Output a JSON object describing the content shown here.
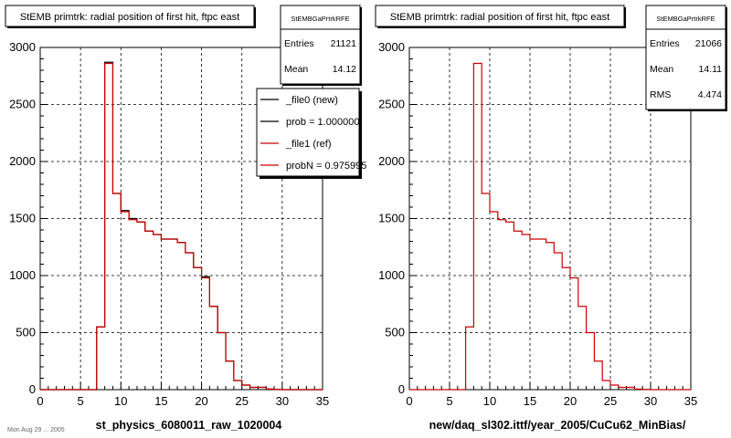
{
  "canvas": {
    "background": "#ffffff",
    "frame_color": "#000000",
    "grid_color": "#000000"
  },
  "footer_text": "Mon Aug 29 ... 2005",
  "chart_data": [
    {
      "type": "histogram",
      "title": "StEMB primtrk: radial position of first hit, ftpc east",
      "xlabel": "st_physics_6080011_raw_1020004",
      "ylabel": "",
      "xlim": [
        0,
        35
      ],
      "ylim": [
        0,
        3000
      ],
      "x_ticks": [
        0,
        5,
        10,
        15,
        20,
        25,
        30,
        35
      ],
      "y_ticks": [
        0,
        500,
        1000,
        1500,
        2000,
        2500,
        3000
      ],
      "grid": true,
      "bin_edges": [
        0,
        1,
        2,
        3,
        4,
        5,
        6,
        7,
        8,
        9,
        10,
        11,
        12,
        13,
        14,
        15,
        16,
        17,
        18,
        19,
        20,
        21,
        22,
        23,
        24,
        25,
        26,
        27,
        28,
        29,
        30,
        31,
        32,
        33,
        34,
        35
      ],
      "series": [
        {
          "name": "_file0 (new)",
          "color": "#000000",
          "values": [
            0,
            0,
            0,
            0,
            0,
            0,
            0,
            550,
            2870,
            1720,
            1570,
            1500,
            1470,
            1390,
            1360,
            1320,
            1320,
            1290,
            1200,
            1070,
            990,
            730,
            500,
            250,
            80,
            40,
            20,
            20,
            5,
            2,
            0,
            0,
            0,
            0,
            0
          ]
        },
        {
          "name": "_file1 (ref)",
          "color": "#cc0000",
          "values": [
            0,
            0,
            0,
            0,
            0,
            0,
            0,
            550,
            2860,
            1720,
            1560,
            1490,
            1470,
            1390,
            1360,
            1320,
            1320,
            1290,
            1200,
            1070,
            980,
            730,
            500,
            250,
            80,
            40,
            20,
            20,
            5,
            2,
            0,
            0,
            0,
            0,
            0
          ]
        }
      ],
      "stats_box": {
        "title": "StEMBGaPrtrkRFE",
        "rows": [
          {
            "label": "Entries",
            "value": "21121"
          },
          {
            "label": "Mean",
            "value": "14.12"
          }
        ]
      },
      "legend": {
        "placement": "top-right",
        "entries": [
          {
            "label": "_file0 (new)",
            "color": "#000000"
          },
          {
            "label": "prob = 1.000000",
            "color": "#000000"
          },
          {
            "label": "_file1 (ref)",
            "color": "#cc0000"
          },
          {
            "label": "probN = 0.975995",
            "color": "#cc0000"
          }
        ]
      }
    },
    {
      "type": "histogram",
      "title": "StEMB primtrk: radial position of first hit, ftpc east",
      "xlabel": "new/daq_sl302.ittf/year_2005/CuCu62_MinBias/",
      "ylabel": "",
      "xlim": [
        0,
        35
      ],
      "ylim": [
        0,
        3000
      ],
      "x_ticks": [
        0,
        5,
        10,
        15,
        20,
        25,
        30,
        35
      ],
      "y_ticks": [
        0,
        500,
        1000,
        1500,
        2000,
        2500,
        3000
      ],
      "grid": true,
      "bin_edges": [
        0,
        1,
        2,
        3,
        4,
        5,
        6,
        7,
        8,
        9,
        10,
        11,
        12,
        13,
        14,
        15,
        16,
        17,
        18,
        19,
        20,
        21,
        22,
        23,
        24,
        25,
        26,
        27,
        28,
        29,
        30,
        31,
        32,
        33,
        34,
        35
      ],
      "series": [
        {
          "name": "",
          "color": "#cc0000",
          "values": [
            0,
            0,
            0,
            0,
            0,
            0,
            0,
            550,
            2860,
            1720,
            1560,
            1490,
            1470,
            1390,
            1360,
            1320,
            1320,
            1290,
            1200,
            1070,
            980,
            730,
            500,
            250,
            80,
            40,
            20,
            20,
            5,
            2,
            0,
            0,
            0,
            0,
            0
          ]
        }
      ],
      "stats_box": {
        "title": "StEMBGaPrtrkRFE",
        "rows": [
          {
            "label": "Entries",
            "value": "21066"
          },
          {
            "label": "Mean",
            "value": "14.11"
          },
          {
            "label": "RMS",
            "value": "4.474"
          }
        ]
      },
      "legend": null
    }
  ]
}
